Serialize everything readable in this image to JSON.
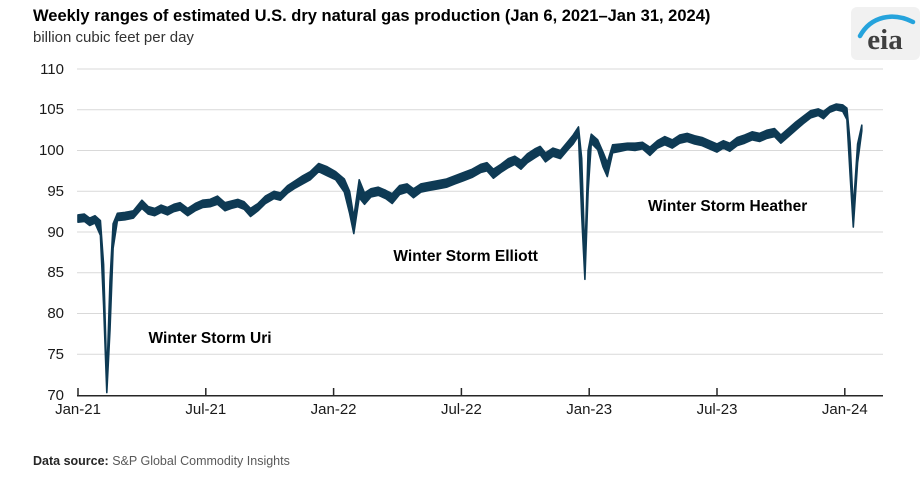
{
  "header": {
    "title": "Weekly ranges of estimated U.S. dry natural gas production (Jan 6, 2021–Jan 31, 2024)",
    "subtitle": "billion cubic feet per day",
    "logo_text": "eia"
  },
  "footer": {
    "label": "Data source:",
    "source": "S&P Global Commodity Insights"
  },
  "colors": {
    "band": "#0e3a54",
    "grid": "#d9d9d9",
    "axis": "#262626",
    "logo_blue": "#25a3dc",
    "logo_text": "#3f3f3f",
    "tick_text": "#1a1a1a"
  },
  "chart_data": {
    "type": "area",
    "subtype": "range-band",
    "title": "Weekly ranges of estimated U.S. dry natural gas production (Jan 6, 2021–Jan 31, 2024)",
    "ylabel": "billion cubic feet per day",
    "ylim": [
      70,
      110
    ],
    "grid": true,
    "legend": false,
    "y_axis": {
      "ticks": [
        110,
        105,
        100,
        95,
        90,
        85,
        80,
        75,
        70
      ],
      "step": 5
    },
    "x_axis": {
      "ticks": [
        {
          "label": "Jan-21",
          "month": 0
        },
        {
          "label": "Jul-21",
          "month": 6
        },
        {
          "label": "Jan-22",
          "month": 12
        },
        {
          "label": "Jul-22",
          "month": 18
        },
        {
          "label": "Jan-23",
          "month": 24
        },
        {
          "label": "Jul-23",
          "month": 30
        },
        {
          "label": "Jan-24",
          "month": 36
        }
      ],
      "start_month": 0,
      "end_month": 36.8
    },
    "annotations": [
      {
        "label": "Winter Storm Uri",
        "month": 6.2,
        "value": 76.9
      },
      {
        "label": "Winter Storm Elliott",
        "month": 18.2,
        "value": 86.9
      },
      {
        "label": "Winter Storm Heather",
        "month": 30.5,
        "value": 93.1
      }
    ],
    "series": [
      {
        "name": "weekly range (lo, hi) by months since Jan 2021",
        "points": [
          [
            0.0,
            91.2,
            92.1
          ],
          [
            0.3,
            91.3,
            92.2
          ],
          [
            0.55,
            90.8,
            91.7
          ],
          [
            0.8,
            91.1,
            92.0
          ],
          [
            1.05,
            89.6,
            91.4
          ],
          [
            1.2,
            81.0,
            86.0
          ],
          [
            1.35,
            70.3,
            72.0
          ],
          [
            1.5,
            78.0,
            84.0
          ],
          [
            1.65,
            88.0,
            91.0
          ],
          [
            1.85,
            91.4,
            92.3
          ],
          [
            2.2,
            91.5,
            92.4
          ],
          [
            2.6,
            91.7,
            92.6
          ],
          [
            3.0,
            92.9,
            93.9
          ],
          [
            3.3,
            92.2,
            93.1
          ],
          [
            3.6,
            92.0,
            92.9
          ],
          [
            3.9,
            92.4,
            93.3
          ],
          [
            4.2,
            92.1,
            93.0
          ],
          [
            4.5,
            92.5,
            93.4
          ],
          [
            4.8,
            92.7,
            93.6
          ],
          [
            5.15,
            92.0,
            92.9
          ],
          [
            5.5,
            92.6,
            93.5
          ],
          [
            5.85,
            93.0,
            93.9
          ],
          [
            6.2,
            93.1,
            94.0
          ],
          [
            6.55,
            93.4,
            94.4
          ],
          [
            6.9,
            92.6,
            93.6
          ],
          [
            7.2,
            92.9,
            93.8
          ],
          [
            7.5,
            93.1,
            94.0
          ],
          [
            7.8,
            92.8,
            93.7
          ],
          [
            8.1,
            91.9,
            92.9
          ],
          [
            8.45,
            92.6,
            93.5
          ],
          [
            8.8,
            93.5,
            94.4
          ],
          [
            9.2,
            94.1,
            95.0
          ],
          [
            9.5,
            93.9,
            94.8
          ],
          [
            9.85,
            94.8,
            95.7
          ],
          [
            10.2,
            95.4,
            96.3
          ],
          [
            10.55,
            95.9,
            96.9
          ],
          [
            10.9,
            96.4,
            97.4
          ],
          [
            11.3,
            97.4,
            98.4
          ],
          [
            11.7,
            96.9,
            98.0
          ],
          [
            12.1,
            96.4,
            97.4
          ],
          [
            12.5,
            94.9,
            96.5
          ],
          [
            12.75,
            92.3,
            95.0
          ],
          [
            12.95,
            89.8,
            91.8
          ],
          [
            13.2,
            94.2,
            96.4
          ],
          [
            13.45,
            93.4,
            94.8
          ],
          [
            13.75,
            94.3,
            95.3
          ],
          [
            14.1,
            94.5,
            95.5
          ],
          [
            14.45,
            94.1,
            95.1
          ],
          [
            14.75,
            93.5,
            94.7
          ],
          [
            15.1,
            94.6,
            95.7
          ],
          [
            15.45,
            94.9,
            95.9
          ],
          [
            15.75,
            94.2,
            95.3
          ],
          [
            16.1,
            94.9,
            95.9
          ],
          [
            16.5,
            95.1,
            96.1
          ],
          [
            16.9,
            95.3,
            96.3
          ],
          [
            17.3,
            95.5,
            96.5
          ],
          [
            17.7,
            95.9,
            96.9
          ],
          [
            18.1,
            96.3,
            97.3
          ],
          [
            18.5,
            96.7,
            97.7
          ],
          [
            18.9,
            97.3,
            98.3
          ],
          [
            19.2,
            97.5,
            98.5
          ],
          [
            19.5,
            96.6,
            97.7
          ],
          [
            19.85,
            97.3,
            98.3
          ],
          [
            20.2,
            97.9,
            99.0
          ],
          [
            20.5,
            98.3,
            99.3
          ],
          [
            20.8,
            97.7,
            98.8
          ],
          [
            21.1,
            98.5,
            99.6
          ],
          [
            21.45,
            99.1,
            100.2
          ],
          [
            21.7,
            99.5,
            100.5
          ],
          [
            21.95,
            98.6,
            99.7
          ],
          [
            22.3,
            99.3,
            100.3
          ],
          [
            22.65,
            99.0,
            100.0
          ],
          [
            23.0,
            100.1,
            101.1
          ],
          [
            23.25,
            100.8,
            101.9
          ],
          [
            23.5,
            101.8,
            102.9
          ],
          [
            23.65,
            92.0,
            99.0
          ],
          [
            23.8,
            84.2,
            87.0
          ],
          [
            23.95,
            95.0,
            100.0
          ],
          [
            24.1,
            100.9,
            102.0
          ],
          [
            24.4,
            100.1,
            101.3
          ],
          [
            24.65,
            98.0,
            99.8
          ],
          [
            24.85,
            96.8,
            98.5
          ],
          [
            25.1,
            99.7,
            100.7
          ],
          [
            25.45,
            99.9,
            100.8
          ],
          [
            25.8,
            100.1,
            100.9
          ],
          [
            26.15,
            100.0,
            100.9
          ],
          [
            26.5,
            100.2,
            101.0
          ],
          [
            26.85,
            99.4,
            100.4
          ],
          [
            27.2,
            100.3,
            101.2
          ],
          [
            27.55,
            100.7,
            101.7
          ],
          [
            27.9,
            100.3,
            101.3
          ],
          [
            28.25,
            100.9,
            101.9
          ],
          [
            28.6,
            101.1,
            102.1
          ],
          [
            28.95,
            100.8,
            101.8
          ],
          [
            29.3,
            100.6,
            101.6
          ],
          [
            29.65,
            100.2,
            101.2
          ],
          [
            30.0,
            99.8,
            100.8
          ],
          [
            30.3,
            100.3,
            101.2
          ],
          [
            30.6,
            99.9,
            100.9
          ],
          [
            30.95,
            100.6,
            101.6
          ],
          [
            31.3,
            100.9,
            101.9
          ],
          [
            31.65,
            101.3,
            102.3
          ],
          [
            32.0,
            101.1,
            102.1
          ],
          [
            32.35,
            101.5,
            102.5
          ],
          [
            32.7,
            101.7,
            102.7
          ],
          [
            33.0,
            100.9,
            101.9
          ],
          [
            33.35,
            101.7,
            102.7
          ],
          [
            33.7,
            102.5,
            103.5
          ],
          [
            34.05,
            103.3,
            104.2
          ],
          [
            34.4,
            104.0,
            104.9
          ],
          [
            34.75,
            104.3,
            105.1
          ],
          [
            35.0,
            103.9,
            104.8
          ],
          [
            35.3,
            104.7,
            105.4
          ],
          [
            35.6,
            105.0,
            105.7
          ],
          [
            35.9,
            104.8,
            105.6
          ],
          [
            36.1,
            103.8,
            105.2
          ],
          [
            36.25,
            97.0,
            101.0
          ],
          [
            36.4,
            90.6,
            92.8
          ],
          [
            36.6,
            98.5,
            100.8
          ],
          [
            36.8,
            102.4,
            103.1
          ]
        ]
      }
    ]
  }
}
